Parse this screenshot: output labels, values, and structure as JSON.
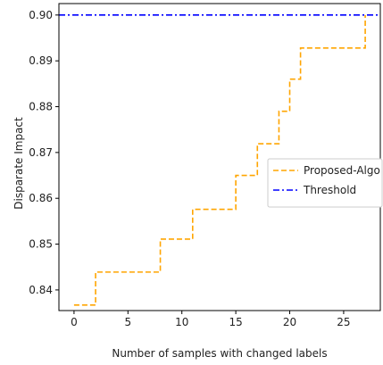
{
  "chart_data": {
    "type": "line",
    "title": "",
    "xlabel": "Number of samples with changed labels",
    "ylabel": "Disparate Impact",
    "xlim": [
      -1.4,
      28.4
    ],
    "ylim": [
      0.8355,
      0.9025
    ],
    "xticks": [
      0,
      5,
      10,
      15,
      20,
      25
    ],
    "yticks": [
      0.84,
      0.85,
      0.86,
      0.87,
      0.88,
      0.89,
      0.9
    ],
    "ytick_labels": [
      "0.84",
      "0.85",
      "0.86",
      "0.87",
      "0.88",
      "0.89",
      "0.90"
    ],
    "grid": false,
    "legend_position": "right",
    "series": [
      {
        "name": "Proposed-Algo",
        "color": "#ffa500",
        "style": "dashed",
        "step": true,
        "x": [
          0,
          1,
          2,
          3,
          4,
          5,
          6,
          7,
          8,
          9,
          10,
          11,
          12,
          13,
          14,
          15,
          16,
          17,
          18,
          19,
          20,
          21,
          22,
          23,
          24,
          25,
          26,
          27
        ],
        "values": [
          0.8367,
          0.8367,
          0.8439,
          0.8439,
          0.8439,
          0.8439,
          0.8439,
          0.8439,
          0.8511,
          0.8511,
          0.8511,
          0.8576,
          0.8576,
          0.8576,
          0.8576,
          0.865,
          0.865,
          0.8719,
          0.8719,
          0.879,
          0.886,
          0.8928,
          0.8928,
          0.8928,
          0.8928,
          0.8928,
          0.8928,
          0.9
        ]
      },
      {
        "name": "Threshold",
        "color": "#0000ff",
        "style": "dashdot",
        "hline": 0.9
      }
    ]
  }
}
